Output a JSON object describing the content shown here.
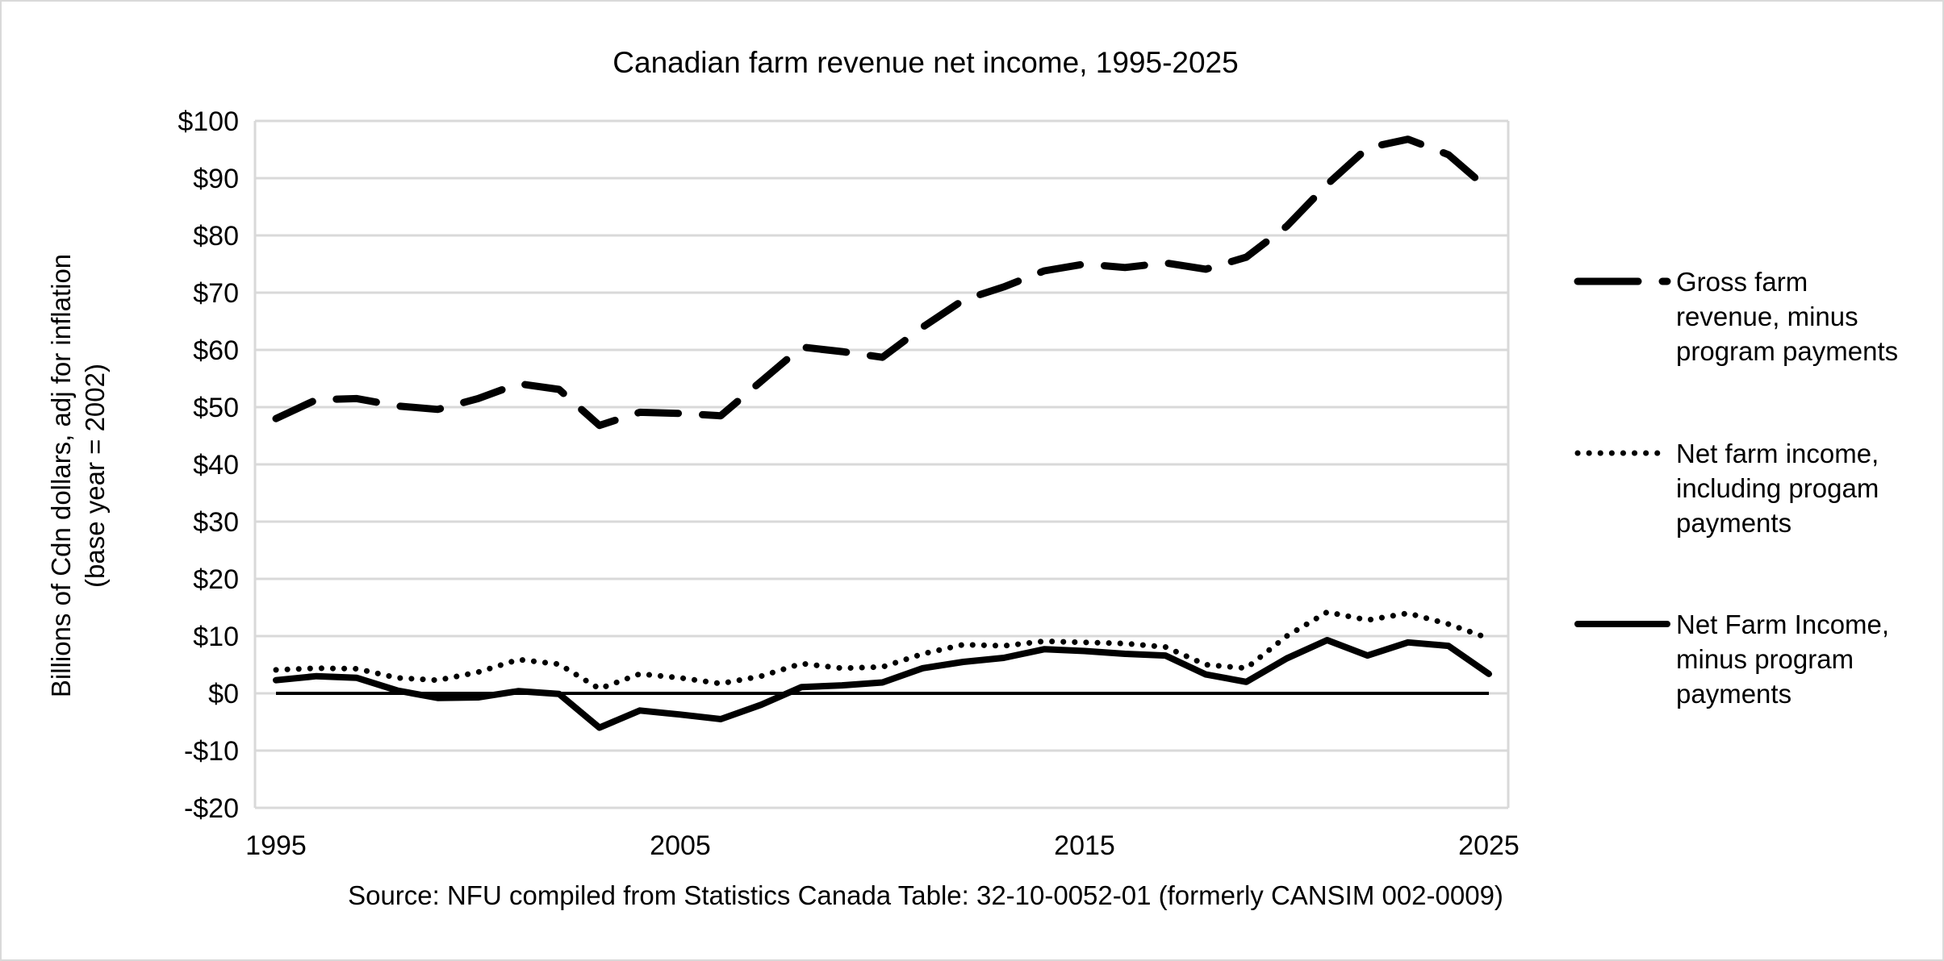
{
  "chart_data": {
    "type": "line",
    "title": "Canadian farm revenue net income, 1995-2025",
    "xlabel": "",
    "ylabel": [
      "Billions of Cdn dollars, adj for inflation",
      "(base year = 2002)"
    ],
    "xlim": [
      1995,
      2025
    ],
    "ylim": [
      -20,
      100
    ],
    "x_ticks": [
      1995,
      2005,
      2015,
      2025
    ],
    "x_tick_labels": [
      "1995",
      "2005",
      "2015",
      "2025"
    ],
    "y_ticks": [
      -20,
      -10,
      0,
      10,
      20,
      30,
      40,
      50,
      60,
      70,
      80,
      90,
      100
    ],
    "y_tick_labels": [
      "-$20",
      "-$10",
      "$0",
      "$10",
      "$20",
      "$30",
      "$40",
      "$50",
      "$60",
      "$70",
      "$80",
      "$90",
      "$100"
    ],
    "grid": true,
    "zero_line": true,
    "legend_position": "right",
    "x": [
      1995,
      1996,
      1997,
      1998,
      1999,
      2000,
      2001,
      2002,
      2003,
      2004,
      2005,
      2006,
      2007,
      2008,
      2009,
      2010,
      2011,
      2012,
      2013,
      2014,
      2015,
      2016,
      2017,
      2018,
      2019,
      2020,
      2021,
      2022,
      2023,
      2024,
      2025
    ],
    "series": [
      {
        "name": "Gross farm revenue, minus program payments",
        "legend_lines": [
          "Gross farm",
          "revenue, minus",
          "program payments"
        ],
        "style": "dashed",
        "color": "#000000",
        "values": [
          48.0,
          51.3,
          51.5,
          50.2,
          49.6,
          51.5,
          54.1,
          53.1,
          46.8,
          49.1,
          48.9,
          48.5,
          54.5,
          60.5,
          59.7,
          58.7,
          64.0,
          68.7,
          71.0,
          73.8,
          75.0,
          74.4,
          75.2,
          74.1,
          76.2,
          81.6,
          88.9,
          95.3,
          96.8,
          94.1,
          88.0
        ]
      },
      {
        "name": "Net farm income, including progam payments",
        "legend_lines": [
          "Net farm income,",
          "including progam",
          "payments"
        ],
        "style": "dotted",
        "color": "#000000",
        "values": [
          4.1,
          4.4,
          4.3,
          2.7,
          2.3,
          3.7,
          5.9,
          5.1,
          0.8,
          3.4,
          2.7,
          1.7,
          3.0,
          5.2,
          4.4,
          4.6,
          6.9,
          8.5,
          8.3,
          9.1,
          8.9,
          8.7,
          8.1,
          5.0,
          4.4,
          10.0,
          14.2,
          12.8,
          14.0,
          12.1,
          9.6
        ]
      },
      {
        "name": "Net Farm Income, minus program payments",
        "legend_lines": [
          "Net Farm Income,",
          "minus program",
          "payments"
        ],
        "style": "solid",
        "color": "#000000",
        "values": [
          2.3,
          3.0,
          2.7,
          0.5,
          -0.8,
          -0.7,
          0.4,
          -0.1,
          -6.0,
          -3.0,
          -3.7,
          -4.5,
          -2.0,
          1.1,
          1.4,
          1.9,
          4.4,
          5.5,
          6.2,
          7.7,
          7.4,
          6.9,
          6.6,
          3.3,
          2.0,
          6.1,
          9.3,
          6.6,
          8.9,
          8.3,
          3.4
        ]
      }
    ],
    "source": "Source: NFU compiled from Statistics Canada Table: 32-10-0052-01 (formerly CANSIM 002-0009)"
  }
}
